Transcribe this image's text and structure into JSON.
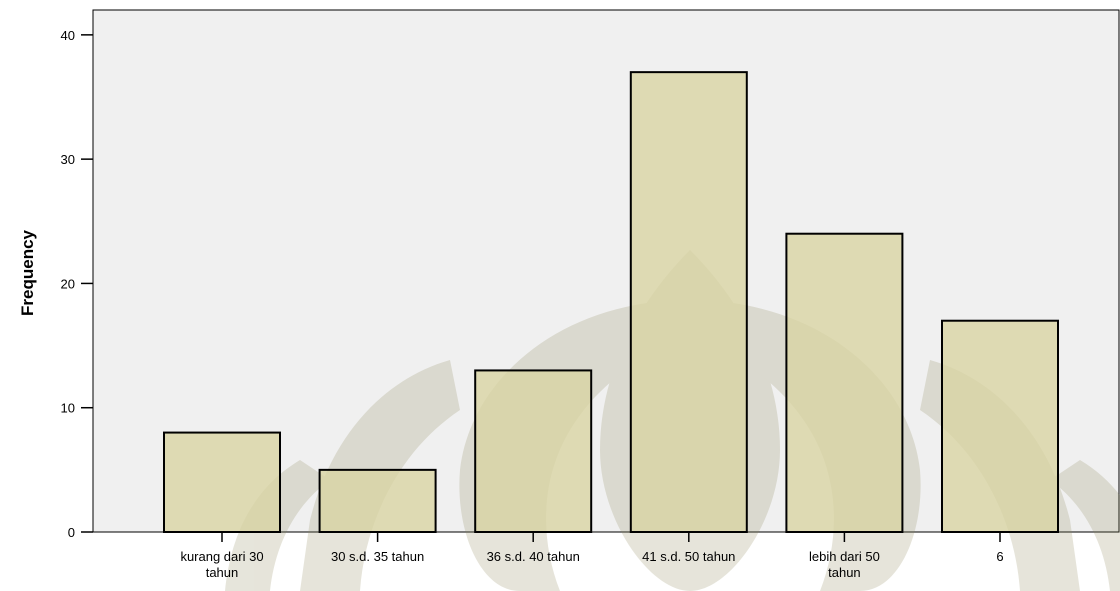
{
  "chart_data": {
    "type": "bar",
    "title": "",
    "xlabel": "",
    "ylabel": "Frequency",
    "categories": [
      [
        "kurang dari 30",
        "tahun"
      ],
      [
        "30 s.d. 35 tahun"
      ],
      [
        "36 s.d. 40 tahun"
      ],
      [
        "41 s.d. 50 tahun"
      ],
      [
        "lebih dari 50",
        "tahun"
      ],
      [
        "6"
      ]
    ],
    "values": [
      8,
      5,
      13,
      37,
      24,
      17
    ],
    "ylim": [
      0,
      42
    ],
    "yticks": [
      0,
      10,
      20,
      30,
      40
    ],
    "grid": false,
    "colors": {
      "plot_background": "#f0f0f0",
      "bar_fill": "#d9d3a2",
      "bar_stroke": "#000000",
      "watermark": "#8f8a5c"
    }
  }
}
